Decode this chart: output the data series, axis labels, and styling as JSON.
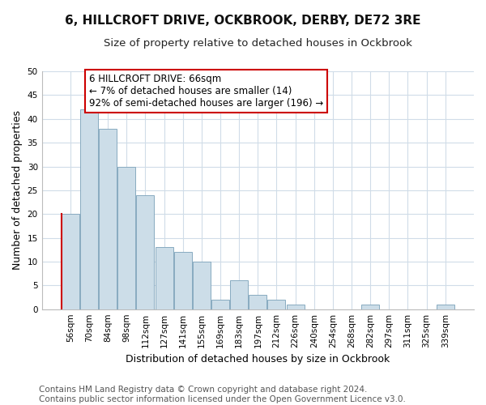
{
  "title": "6, HILLCROFT DRIVE, OCKBROOK, DERBY, DE72 3RE",
  "subtitle": "Size of property relative to detached houses in Ockbrook",
  "xlabel": "Distribution of detached houses by size in Ockbrook",
  "ylabel": "Number of detached properties",
  "categories": [
    "56sqm",
    "70sqm",
    "84sqm",
    "98sqm",
    "112sqm",
    "127sqm",
    "141sqm",
    "155sqm",
    "169sqm",
    "183sqm",
    "197sqm",
    "212sqm",
    "226sqm",
    "240sqm",
    "254sqm",
    "268sqm",
    "282sqm",
    "297sqm",
    "311sqm",
    "325sqm",
    "339sqm"
  ],
  "values": [
    20,
    42,
    38,
    30,
    24,
    13,
    12,
    10,
    2,
    6,
    3,
    2,
    1,
    0,
    0,
    0,
    1,
    0,
    0,
    0,
    1
  ],
  "bar_color": "#ccdde8",
  "bar_edge_color": "#88aac0",
  "highlight_bar_index": 0,
  "highlight_edge_color": "#cc0000",
  "ylim": [
    0,
    50
  ],
  "yticks": [
    0,
    5,
    10,
    15,
    20,
    25,
    30,
    35,
    40,
    45,
    50
  ],
  "background_color": "#ffffff",
  "grid_color": "#d0dce8",
  "annotation_text": "6 HILLCROFT DRIVE: 66sqm\n← 7% of detached houses are smaller (14)\n92% of semi-detached houses are larger (196) →",
  "annotation_box_color": "#ffffff",
  "annotation_box_edge_color": "#cc0000",
  "footer_line1": "Contains HM Land Registry data © Crown copyright and database right 2024.",
  "footer_line2": "Contains public sector information licensed under the Open Government Licence v3.0.",
  "title_fontsize": 11,
  "subtitle_fontsize": 9.5,
  "ylabel_fontsize": 9,
  "xlabel_fontsize": 9,
  "annotation_fontsize": 8.5,
  "tick_fontsize": 7.5,
  "footer_fontsize": 7.5
}
